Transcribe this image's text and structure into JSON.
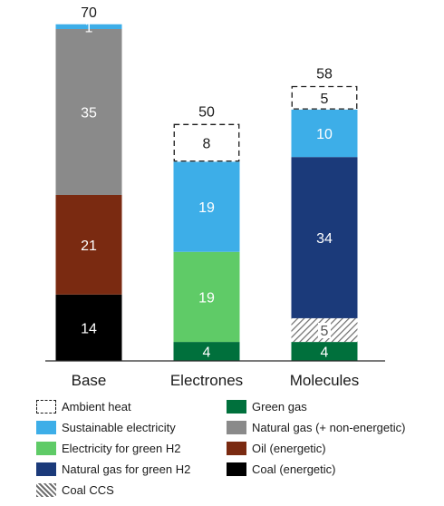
{
  "chart_data": {
    "type": "bar",
    "stacked": true,
    "categories": [
      "Base",
      "Electrones",
      "Molecules"
    ],
    "totals": [
      70,
      50,
      58
    ],
    "ylim": [
      0,
      70
    ],
    "series": [
      {
        "key": "green_gas",
        "name": "Green gas",
        "color": "#00703c",
        "pattern": "solid",
        "values": [
          0,
          4,
          4
        ]
      },
      {
        "key": "coal_ccs",
        "name": "Coal CCS",
        "color": "#6e6e6e",
        "pattern": "hatch",
        "values": [
          0,
          0,
          5
        ]
      },
      {
        "key": "coal",
        "name": "Coal (energetic)",
        "color": "#000000",
        "pattern": "solid",
        "values": [
          14,
          0,
          0
        ]
      },
      {
        "key": "oil",
        "name": "Oil (energetic)",
        "color": "#7a2a11",
        "pattern": "solid",
        "values": [
          21,
          0,
          0
        ]
      },
      {
        "key": "natural_gas",
        "name": "Natural gas (+ non-energetic)",
        "color": "#8a8a8a",
        "pattern": "solid",
        "values": [
          35,
          0,
          0
        ]
      },
      {
        "key": "ng_green_h2",
        "name": "Natural gas for green H2",
        "color": "#1b3a7a",
        "pattern": "solid",
        "values": [
          0,
          0,
          34
        ]
      },
      {
        "key": "elec_green_h2",
        "name": "Electricity for green H2",
        "color": "#5fcb67",
        "pattern": "solid",
        "values": [
          0,
          19,
          0
        ]
      },
      {
        "key": "sust_elec",
        "name": "Sustainable electricity",
        "color": "#3daee8",
        "pattern": "solid",
        "values": [
          1,
          19,
          10
        ]
      },
      {
        "key": "ambient_heat",
        "name": "Ambient heat",
        "color": "#ffffff",
        "pattern": "dashed",
        "values": [
          0,
          8,
          5
        ]
      }
    ],
    "legend_order": [
      "ambient_heat",
      "green_gas",
      "sust_elec",
      "natural_gas",
      "elec_green_h2",
      "oil",
      "ng_green_h2",
      "coal",
      "coal_ccs"
    ],
    "legend_position": "bottom"
  }
}
